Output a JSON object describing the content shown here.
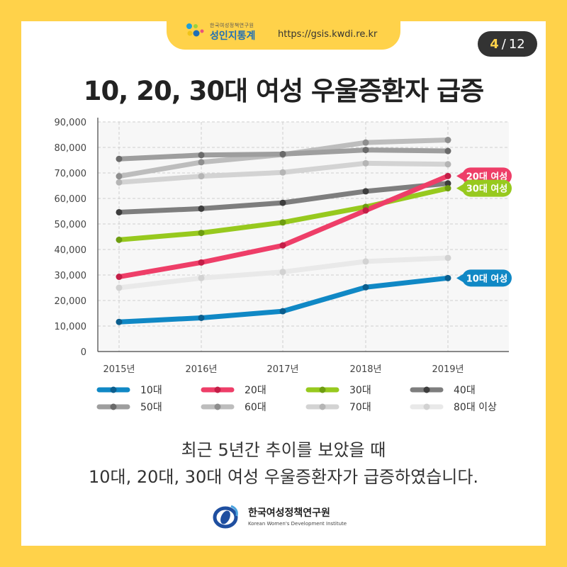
{
  "header": {
    "brand_small": "한국여성정책연구원",
    "brand_name": "성인지통계",
    "url": "https://gsis.kwdi.re.kr"
  },
  "page": {
    "current": "4",
    "total": "12"
  },
  "title": "10, 20, 30대 여성 우울증환자 급증",
  "chart_data": {
    "type": "line",
    "categories": [
      "2015년",
      "2016년",
      "2017년",
      "2018년",
      "2019년"
    ],
    "ylim": [
      0,
      90000
    ],
    "yticks": [
      "0",
      "10,000",
      "20,000",
      "30,000",
      "40,000",
      "50,000",
      "60,000",
      "70,000",
      "80,000",
      "90,000"
    ],
    "grid": true,
    "legend_position": "bottom",
    "series": [
      {
        "name": "80대 이상",
        "color": "#E9E9E9",
        "marker": "#D2D2D2",
        "values": [
          25000,
          28800,
          31200,
          35300,
          36700
        ]
      },
      {
        "name": "70대",
        "color": "#D3D3D3",
        "marker": "#B5B5B5",
        "values": [
          66300,
          68700,
          70200,
          73800,
          73400
        ]
      },
      {
        "name": "60대",
        "color": "#BDBDBD",
        "marker": "#8E8E8E",
        "values": [
          68700,
          74200,
          77200,
          81900,
          82900
        ]
      },
      {
        "name": "50대",
        "color": "#9E9E9E",
        "marker": "#6A6A6A",
        "values": [
          75500,
          77000,
          77400,
          79000,
          78600
        ]
      },
      {
        "name": "40대",
        "color": "#7E7E7E",
        "marker": "#3D3D3D",
        "values": [
          54600,
          56000,
          58300,
          62800,
          65900
        ]
      },
      {
        "name": "30대",
        "color": "#97C91E",
        "marker": "#6E9D10",
        "values": [
          43800,
          46500,
          50600,
          56700,
          64000
        ]
      },
      {
        "name": "20대",
        "color": "#EE3E68",
        "marker": "#C41E47",
        "values": [
          29300,
          34900,
          41600,
          55300,
          68800
        ]
      },
      {
        "name": "10대",
        "color": "#1088C5",
        "marker": "#0B5E8E",
        "values": [
          11600,
          13200,
          15800,
          25200,
          28800
        ]
      }
    ],
    "legend_order": [
      "10대",
      "20대",
      "30대",
      "40대",
      "50대",
      "60대",
      "70대",
      "80대 이상"
    ],
    "annotations": [
      {
        "text": "20대 여성",
        "series": "20대",
        "color": "#EE3E68"
      },
      {
        "text": "30대 여성",
        "series": "30대",
        "color": "#97C91E"
      },
      {
        "text": "10대 여성",
        "series": "10대",
        "color": "#1088C5"
      }
    ]
  },
  "caption": {
    "line1": "최근 5년간 추이를 보았을 때",
    "line2": "10대, 20대, 30대 여성 우울증환자가 급증하였습니다."
  },
  "org": {
    "name_kr": "한국여성정책연구원",
    "name_en": "Korean Women's Development Institute"
  }
}
